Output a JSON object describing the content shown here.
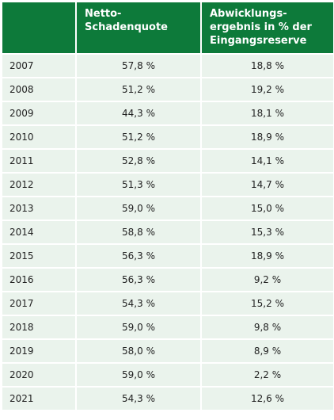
{
  "table": {
    "headers": {
      "year": "",
      "quote": "Netto-\nSchadenquote",
      "result": "Abwicklungs-\nergebnis in % der\nEingangsreserve"
    },
    "rows": [
      {
        "year": "2007",
        "quote": "57,8 %",
        "result": "18,8 %"
      },
      {
        "year": "2008",
        "quote": "51,2 %",
        "result": "19,2 %"
      },
      {
        "year": "2009",
        "quote": "44,3 %",
        "result": "18,1 %"
      },
      {
        "year": "2010",
        "quote": "51,2 %",
        "result": "18,9 %"
      },
      {
        "year": "2011",
        "quote": "52,8 %",
        "result": "14,1 %"
      },
      {
        "year": "2012",
        "quote": "51,3 %",
        "result": "14,7 %"
      },
      {
        "year": "2013",
        "quote": "59,0 %",
        "result": "15,0 %"
      },
      {
        "year": "2014",
        "quote": "58,8 %",
        "result": "15,3 %"
      },
      {
        "year": "2015",
        "quote": "56,3 %",
        "result": "18,9 %"
      },
      {
        "year": "2016",
        "quote": "56,3 %",
        "result": "9,2 %"
      },
      {
        "year": "2017",
        "quote": "54,3 %",
        "result": "15,2 %"
      },
      {
        "year": "2018",
        "quote": "59,0 %",
        "result": "9,8 %"
      },
      {
        "year": "2019",
        "quote": "58,0 %",
        "result": "8,9 %"
      },
      {
        "year": "2020",
        "quote": "59,0 %",
        "result": "2,2 %"
      },
      {
        "year": "2021",
        "quote": "54,3 %",
        "result": "12,6 %"
      }
    ]
  },
  "colors": {
    "header_bg": "#0d7a3a",
    "header_text": "#ffffff",
    "cell_bg": "#eaf3ec",
    "cell_text": "#222222"
  }
}
